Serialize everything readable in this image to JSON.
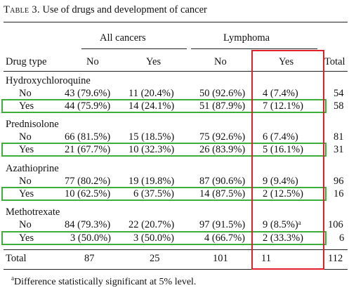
{
  "title": {
    "label": "Table 3.",
    "text": "Use of drugs and development of cancer"
  },
  "group_headers": {
    "all_cancers": "All cancers",
    "lymphoma": "Lymphoma"
  },
  "column_headers": {
    "drug_type": "Drug type",
    "no1": "No",
    "yes1": "Yes",
    "no2": "No",
    "yes2": "Yes",
    "total": "Total"
  },
  "groups": [
    {
      "name": "Hydroxychloroquine",
      "rows": [
        {
          "label": "No",
          "c1": "43 (79.6%)",
          "c2": "11 (20.4%)",
          "c3": "50 (92.6%)",
          "c4": "4 (7.4%)",
          "c4_sup": "",
          "total": "54"
        },
        {
          "label": "Yes",
          "c1": "44 (75.9%)",
          "c2": "14 (24.1%)",
          "c3": "51 (87.9%)",
          "c4": "7 (12.1%)",
          "c4_sup": "",
          "total": "58"
        }
      ]
    },
    {
      "name": "Prednisolone",
      "rows": [
        {
          "label": "No",
          "c1": "66 (81.5%)",
          "c2": "15 (18.5%)",
          "c3": "75 (92.6%)",
          "c4": "6 (7.4%)",
          "c4_sup": "",
          "total": "81"
        },
        {
          "label": "Yes",
          "c1": "21 (67.7%)",
          "c2": "10 (32.3%)",
          "c3": "26 (83.9%)",
          "c4": "5 (16.1%)",
          "c4_sup": "",
          "total": "31"
        }
      ]
    },
    {
      "name": "Azathioprine",
      "rows": [
        {
          "label": "No",
          "c1": "77 (80.2%)",
          "c2": "19 (19.8%)",
          "c3": "87 (90.6%)",
          "c4": "9 (9.4%)",
          "c4_sup": "",
          "total": "96"
        },
        {
          "label": "Yes",
          "c1": "10 (62.5%)",
          "c2": "6 (37.5%)",
          "c3": "14 (87.5%)",
          "c4": "2 (12.5%)",
          "c4_sup": "",
          "total": "16"
        }
      ]
    },
    {
      "name": "Methotrexate",
      "rows": [
        {
          "label": "No",
          "c1": "84 (79.3%)",
          "c2": "22 (20.7%)",
          "c3": "97 (91.5%)",
          "c4": "9 (8.5%)",
          "c4_sup": "a",
          "total": "106"
        },
        {
          "label": "Yes",
          "c1": "3 (50.0%)",
          "c2": "3 (50.0%)",
          "c3": "4 (66.7%)",
          "c4": "2 (33.3%)",
          "c4_sup": "",
          "total": "6"
        }
      ]
    }
  ],
  "totals": {
    "label": "Total",
    "c1": "87",
    "c2": "25",
    "c3": "101",
    "c4": "11",
    "total": "112"
  },
  "footnote": {
    "mark": "a",
    "text": "Difference statistically significant at 5% level."
  },
  "highlight_colors": {
    "yes_rows": "#3cae3c",
    "lymphoma_yes_column": "#e0202a"
  }
}
